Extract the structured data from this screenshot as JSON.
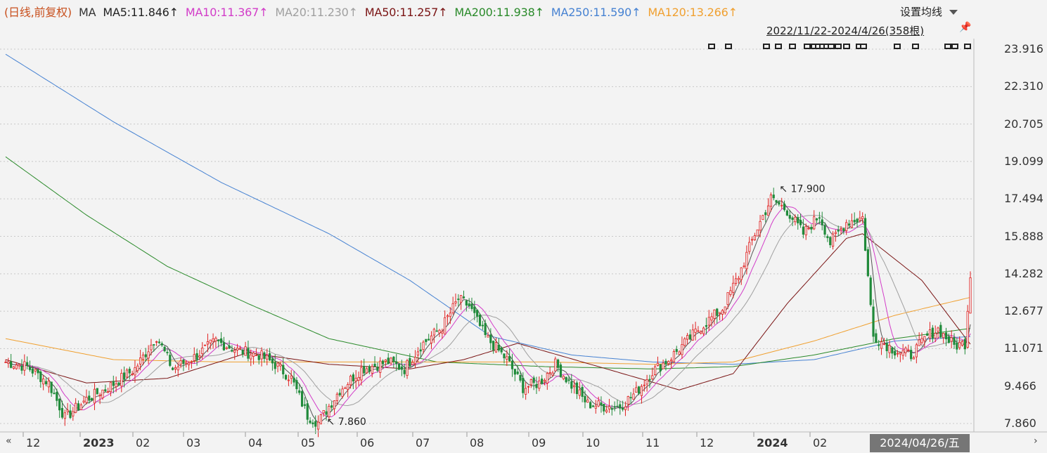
{
  "legend": {
    "period": "(日线,前复权)",
    "ma": "MA",
    "ma5": "MA5:11.846↑",
    "ma10": "MA10:11.367↑",
    "ma20": "MA20:11.230↑",
    "ma50": "MA50:11.257↑",
    "ma200": "MA200:11.938↑",
    "ma250": "MA250:11.590↑",
    "ma120": "MA120:13.266↑"
  },
  "settings_label": "设置均线",
  "range_label": "2022/11/22-2024/4/26(358根)",
  "pin_icon": "pin-icon",
  "nav_left_icon": "double-left-arrow-icon",
  "nav_right_icon": "right-arrow-icon",
  "cursor_date": "2024/04/26/五",
  "colors": {
    "period": "#c8501e",
    "ma": "#333333",
    "ma5": "#222222",
    "ma10": "#d23cc8",
    "ma20": "#a0a0a0",
    "ma50": "#7a1414",
    "ma200": "#2a8a2a",
    "ma250": "#4682d2",
    "ma120": "#f0a030",
    "up": "#e02020",
    "down": "#208a3a"
  },
  "chart_data": {
    "type": "candlestick",
    "ylim": [
      7.86,
      23.916
    ],
    "y_ticks": [
      "23.916",
      "22.310",
      "20.705",
      "19.099",
      "17.494",
      "15.888",
      "14.282",
      "12.677",
      "11.071",
      "9.466",
      "7.860"
    ],
    "x_ticks": [
      {
        "label": "12",
        "bold": false
      },
      {
        "label": "2023",
        "bold": true
      },
      {
        "label": "02",
        "bold": false
      },
      {
        "label": "03",
        "bold": false
      },
      {
        "label": "04",
        "bold": false
      },
      {
        "label": "05",
        "bold": false
      },
      {
        "label": "06",
        "bold": false
      },
      {
        "label": "07",
        "bold": false
      },
      {
        "label": "08",
        "bold": false
      },
      {
        "label": "09",
        "bold": false
      },
      {
        "label": "10",
        "bold": false
      },
      {
        "label": "11",
        "bold": false
      },
      {
        "label": "12",
        "bold": false
      },
      {
        "label": "2024",
        "bold": true
      },
      {
        "label": "02",
        "bold": false
      }
    ],
    "annotations": [
      {
        "text": "17.900",
        "value": 17.9
      },
      {
        "text": "7.860",
        "value": 7.86
      }
    ],
    "close_anchors": [
      [
        0,
        10.5
      ],
      [
        8,
        10.3
      ],
      [
        16,
        9.6
      ],
      [
        22,
        8.1
      ],
      [
        30,
        8.9
      ],
      [
        38,
        9.4
      ],
      [
        48,
        10.2
      ],
      [
        56,
        11.6
      ],
      [
        62,
        10.2
      ],
      [
        70,
        10.7
      ],
      [
        78,
        11.4
      ],
      [
        86,
        11.0
      ],
      [
        94,
        10.8
      ],
      [
        100,
        10.4
      ],
      [
        106,
        9.8
      ],
      [
        112,
        8.2
      ],
      [
        116,
        7.9
      ],
      [
        124,
        9.3
      ],
      [
        132,
        10.2
      ],
      [
        142,
        10.5
      ],
      [
        148,
        10.2
      ],
      [
        154,
        11.2
      ],
      [
        162,
        12.0
      ],
      [
        168,
        13.2
      ],
      [
        172,
        12.9
      ],
      [
        178,
        11.6
      ],
      [
        186,
        10.6
      ],
      [
        192,
        9.4
      ],
      [
        198,
        9.6
      ],
      [
        204,
        10.4
      ],
      [
        210,
        9.5
      ],
      [
        216,
        8.7
      ],
      [
        222,
        8.6
      ],
      [
        228,
        8.6
      ],
      [
        234,
        9.2
      ],
      [
        240,
        10.1
      ],
      [
        246,
        10.6
      ],
      [
        252,
        11.3
      ],
      [
        258,
        12.0
      ],
      [
        266,
        12.8
      ],
      [
        272,
        14.2
      ],
      [
        278,
        16.0
      ],
      [
        284,
        17.5
      ],
      [
        290,
        17.0
      ],
      [
        296,
        16.0
      ],
      [
        302,
        16.8
      ],
      [
        306,
        15.6
      ],
      [
        312,
        16.5
      ],
      [
        318,
        16.7
      ],
      [
        322,
        11.6
      ],
      [
        330,
        11.0
      ],
      [
        336,
        10.8
      ],
      [
        342,
        11.6
      ],
      [
        346,
        11.9
      ],
      [
        352,
        11.2
      ],
      [
        356,
        11.3
      ],
      [
        358,
        14.3
      ]
    ],
    "ma_anchors": {
      "ma250": [
        [
          0,
          23.7
        ],
        [
          40,
          20.8
        ],
        [
          80,
          18.2
        ],
        [
          120,
          16.0
        ],
        [
          150,
          14.0
        ],
        [
          180,
          11.6
        ],
        [
          210,
          10.8
        ],
        [
          240,
          10.5
        ],
        [
          270,
          10.4
        ],
        [
          300,
          10.6
        ],
        [
          330,
          11.4
        ],
        [
          358,
          11.59
        ]
      ],
      "ma200": [
        [
          0,
          19.3
        ],
        [
          30,
          16.8
        ],
        [
          60,
          14.6
        ],
        [
          90,
          13.0
        ],
        [
          120,
          11.5
        ],
        [
          160,
          10.5
        ],
        [
          200,
          10.3
        ],
        [
          240,
          10.2
        ],
        [
          270,
          10.3
        ],
        [
          300,
          10.8
        ],
        [
          330,
          11.5
        ],
        [
          358,
          11.94
        ]
      ],
      "ma120": [
        [
          0,
          11.5
        ],
        [
          40,
          10.6
        ],
        [
          80,
          10.5
        ],
        [
          120,
          10.5
        ],
        [
          160,
          10.5
        ],
        [
          200,
          10.5
        ],
        [
          240,
          10.4
        ],
        [
          270,
          10.5
        ],
        [
          300,
          11.4
        ],
        [
          330,
          12.5
        ],
        [
          358,
          13.27
        ]
      ],
      "ma50": [
        [
          0,
          10.6
        ],
        [
          30,
          9.6
        ],
        [
          60,
          9.8
        ],
        [
          90,
          10.9
        ],
        [
          120,
          10.4
        ],
        [
          150,
          10.2
        ],
        [
          170,
          10.6
        ],
        [
          190,
          11.3
        ],
        [
          220,
          10.3
        ],
        [
          250,
          9.3
        ],
        [
          270,
          10.0
        ],
        [
          290,
          13.0
        ],
        [
          312,
          15.8
        ],
        [
          318,
          16.0
        ],
        [
          340,
          14.0
        ],
        [
          358,
          11.26
        ]
      ]
    }
  }
}
